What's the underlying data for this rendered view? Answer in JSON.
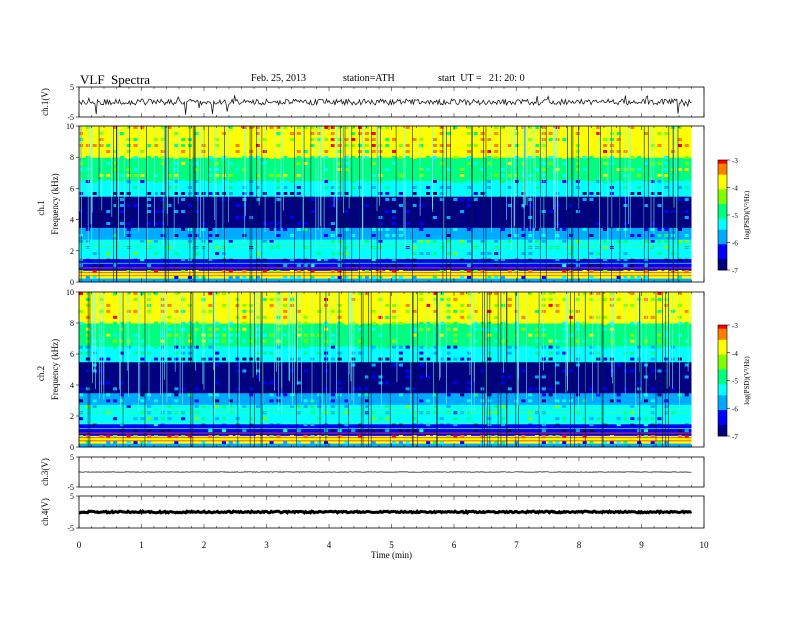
{
  "header": {
    "title": "VLF  Spectra",
    "date": "Feb. 25, 2013",
    "station": "station=ATH",
    "start": "start  UT =   21: 20: 0"
  },
  "chart_data": [
    {
      "type": "line",
      "name": "ch1-waveform",
      "ylabel": "ch.1(V)",
      "ylim": [
        -5,
        5
      ],
      "yticks": [
        "5",
        "-5"
      ],
      "baseline": 0,
      "xlim": [
        0,
        10
      ],
      "data_end": 9.8
    },
    {
      "type": "heatmap",
      "name": "ch1-spectrogram",
      "ylabel": "Frequency  (kHz)",
      "channel_label": "ch.1",
      "ylim": [
        0,
        10
      ],
      "yticks": [
        "0",
        "2",
        "4",
        "6",
        "8",
        "10"
      ],
      "xlim": [
        0,
        10
      ],
      "data_end": 9.8,
      "colorbar": {
        "label": "log(PSD)(V²/Hz)",
        "range": [
          -7,
          -3
        ],
        "ticks": [
          "-3",
          "-4",
          "-5",
          "-6",
          "-7"
        ]
      }
    },
    {
      "type": "heatmap",
      "name": "ch2-spectrogram",
      "ylabel": "Frequency  (kHz)",
      "channel_label": "ch.2",
      "ylim": [
        0,
        10
      ],
      "yticks": [
        "0",
        "2",
        "4",
        "6",
        "8",
        "10"
      ],
      "xlim": [
        0,
        10
      ],
      "data_end": 9.8,
      "colorbar": {
        "label": "log(PSD)(V²/Hz)",
        "range": [
          -7,
          -3
        ],
        "ticks": [
          "-3",
          "-4",
          "-5",
          "-6",
          "-7"
        ]
      }
    },
    {
      "type": "line",
      "name": "ch3-waveform",
      "ylabel": "ch.3(V)",
      "ylim": [
        -5,
        5
      ],
      "yticks": [
        "5",
        "-5"
      ],
      "baseline": 0,
      "xlim": [
        0,
        10
      ],
      "data_end": 9.8
    },
    {
      "type": "line",
      "name": "ch4-waveform",
      "ylabel": "ch.4(V)",
      "ylim": [
        -5,
        5
      ],
      "yticks": [
        "5",
        "-5"
      ],
      "baseline": 0,
      "xlim": [
        0,
        10
      ],
      "data_end": 9.8
    }
  ],
  "x_axis": {
    "label": "Time  (min)",
    "range": [
      0,
      10
    ],
    "ticks": [
      "0",
      "1",
      "2",
      "3",
      "4",
      "5",
      "6",
      "7",
      "8",
      "9",
      "10"
    ]
  },
  "colors": {
    "colormap": [
      "#000080",
      "#0000ff",
      "#00aaff",
      "#00ffff",
      "#00ff80",
      "#80ff00",
      "#ffff00",
      "#ff8000",
      "#ff0000",
      "#ffffff"
    ]
  }
}
